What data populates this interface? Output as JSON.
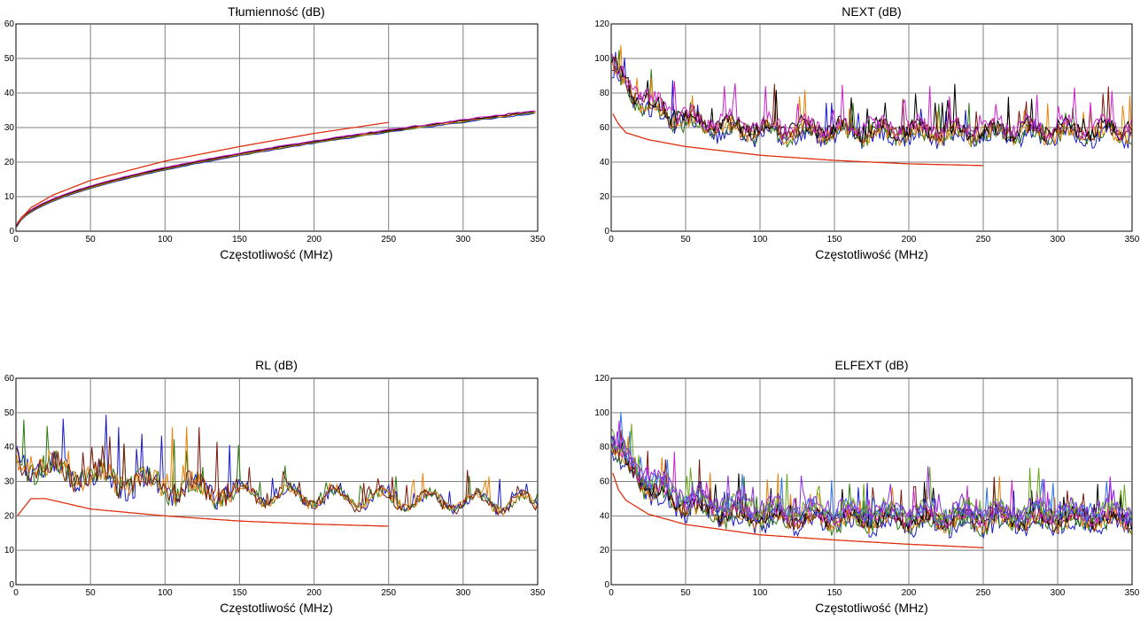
{
  "colors": {
    "limit": "#e03010",
    "grid": "#808080",
    "series": [
      "#1a1acc",
      "#2d7a10",
      "#e8820a",
      "#7a1a0a",
      "#000000",
      "#cc22cc",
      "#2d6fe8",
      "#6aa81a",
      "#8a2be2"
    ]
  },
  "chart_data": [
    {
      "type": "line",
      "title": "Tłumienność (dB)",
      "xlabel": "Częstotliwość (MHz)",
      "ylabel": "",
      "xlim": [
        0,
        350
      ],
      "ylim": [
        0,
        60
      ],
      "xticks": [
        "0",
        "50",
        "100",
        "150",
        "200",
        "250",
        "300",
        "350"
      ],
      "yticks": [
        "0",
        "10",
        "20",
        "30",
        "40",
        "50",
        "60"
      ],
      "grid": true,
      "limit_curve": {
        "x": [
          1,
          10,
          25,
          50,
          100,
          150,
          200,
          250
        ],
        "y": [
          2.5,
          6.8,
          10.5,
          14.7,
          20.3,
          24.5,
          28.3,
          31.5
        ]
      },
      "series_model": {
        "kind": "sqrt",
        "a": 1.7,
        "b": 0.007,
        "count": 6,
        "noise": 0.4,
        "ends_at": 350
      }
    },
    {
      "type": "line",
      "title": "NEXT (dB)",
      "xlabel": "Częstotliwość (MHz)",
      "ylabel": "",
      "xlim": [
        0,
        350
      ],
      "ylim": [
        0,
        120
      ],
      "xticks": [
        "0",
        "50",
        "100",
        "150",
        "200",
        "250",
        "300",
        "350"
      ],
      "yticks": [
        "0",
        "20",
        "40",
        "60",
        "80",
        "100",
        "120"
      ],
      "grid": true,
      "limit_curve": {
        "x": [
          1,
          5,
          10,
          25,
          50,
          100,
          150,
          200,
          250
        ],
        "y": [
          68,
          62,
          57,
          53,
          49,
          44,
          41,
          39,
          38
        ]
      },
      "series_model": {
        "kind": "decay",
        "start": 95,
        "end": 58,
        "count": 6,
        "noise": 10,
        "ends_at": 350
      }
    },
    {
      "type": "line",
      "title": "RL (dB)",
      "xlabel": "Częstotliwość (MHz)",
      "ylabel": "",
      "xlim": [
        0,
        350
      ],
      "ylim": [
        0,
        60
      ],
      "xticks": [
        "0",
        "50",
        "100",
        "150",
        "200",
        "250",
        "300",
        "350"
      ],
      "yticks": [
        "0",
        "10",
        "20",
        "30",
        "40",
        "50",
        "60"
      ],
      "grid": true,
      "limit_curve": {
        "x": [
          1,
          10,
          20,
          50,
          100,
          150,
          200,
          250
        ],
        "y": [
          20,
          25,
          25,
          22,
          20,
          18.5,
          17.6,
          17
        ]
      },
      "series_model": {
        "kind": "rl",
        "start": 36,
        "end": 23,
        "count": 4,
        "noise": 7,
        "ends_at": 350
      }
    },
    {
      "type": "line",
      "title": "ELFEXT (dB)",
      "xlabel": "Częstotliwość (MHz)",
      "ylabel": "",
      "xlim": [
        0,
        350
      ],
      "ylim": [
        0,
        120
      ],
      "xticks": [
        "0",
        "50",
        "100",
        "150",
        "200",
        "250",
        "300",
        "350"
      ],
      "yticks": [
        "0",
        "20",
        "40",
        "60",
        "80",
        "100",
        "120"
      ],
      "grid": true,
      "limit_curve": {
        "x": [
          1,
          5,
          10,
          25,
          50,
          100,
          150,
          200,
          250
        ],
        "y": [
          65,
          55,
          49,
          41,
          35,
          29,
          26,
          23.5,
          21.5
        ]
      },
      "series_model": {
        "kind": "decay",
        "start": 85,
        "end": 40,
        "count": 9,
        "noise": 10,
        "ends_at": 350
      }
    }
  ]
}
